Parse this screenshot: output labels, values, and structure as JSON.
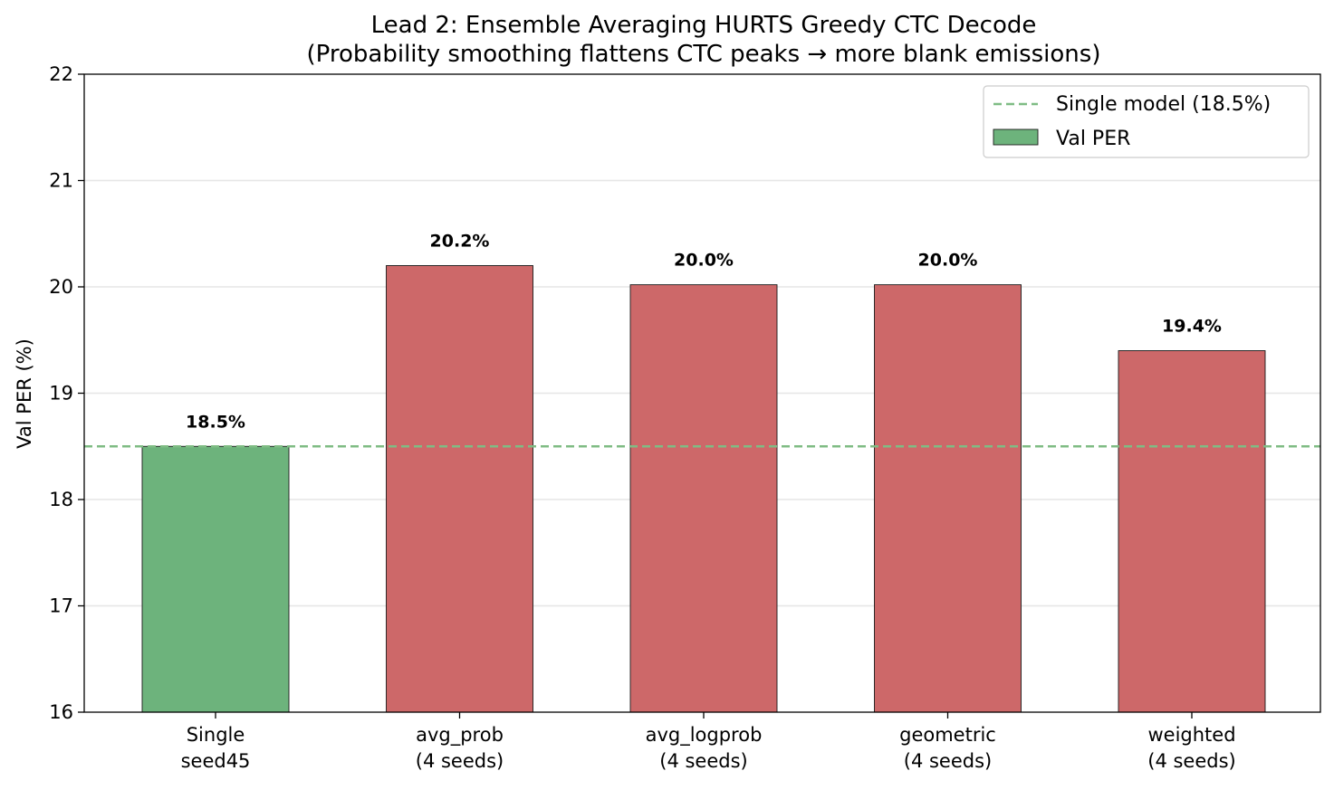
{
  "chart_data": {
    "type": "bar",
    "title": "Lead 2: Ensemble Averaging HURTS Greedy CTC Decode",
    "subtitle": "(Probability smoothing flattens CTC peaks → more blank emissions)",
    "xlabel": "",
    "ylabel": "Val PER (%)",
    "ylim": [
      16,
      22
    ],
    "yticks": [
      16,
      17,
      18,
      19,
      20,
      21,
      22
    ],
    "grid": "horizontal",
    "legend_position": "top-right",
    "categories": [
      [
        "Single",
        "seed45"
      ],
      [
        "avg_prob",
        "(4 seeds)"
      ],
      [
        "avg_logprob",
        "(4 seeds)"
      ],
      [
        "geometric",
        "(4 seeds)"
      ],
      [
        "weighted",
        "(4 seeds)"
      ]
    ],
    "series": [
      {
        "name": "Val PER",
        "values": [
          18.5,
          20.2,
          20.02,
          20.02,
          19.4
        ],
        "value_labels": [
          "18.5%",
          "20.2%",
          "20.0%",
          "20.0%",
          "19.4%"
        ],
        "colors": [
          "#6db37c",
          "#cd6869",
          "#cd6869",
          "#cd6869",
          "#cd6869"
        ]
      }
    ],
    "reference_line": {
      "name": "Single model (18.5%)",
      "value": 18.5,
      "color": "#7fbc84",
      "style": "dashed"
    }
  }
}
